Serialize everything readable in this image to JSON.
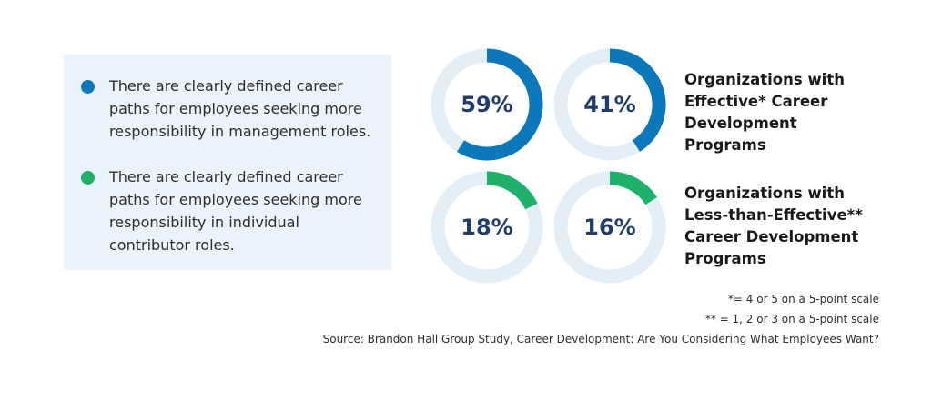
{
  "chart_data": {
    "type": "donut",
    "legend": [
      {
        "text": "There are clearly defined career paths for employees seeking more responsibility in management roles.",
        "color": "#0a78bb"
      },
      {
        "text": "There are clearly defined career paths for employees seeking more responsibility in individual contributor roles.",
        "color": "#1db16a"
      }
    ],
    "rows": [
      {
        "label": "Organizations with Effective* Career Development Programs",
        "color": "#0a78bb",
        "values": [
          59,
          41
        ],
        "value_labels": [
          "59%",
          "41%"
        ]
      },
      {
        "label": "Organizations with Less-than-Effective** Career Development Programs",
        "color": "#1db16a",
        "values": [
          18,
          16
        ],
        "value_labels": [
          "18%",
          "16%"
        ]
      }
    ],
    "notes": [
      "*= 4 or 5 on a 5-point scale",
      "** = 1, 2 or 3 on a 5-point scale",
      "Source: Brandon Hall Group Study, Career Development: Are You Considering What Employees Want?"
    ]
  }
}
